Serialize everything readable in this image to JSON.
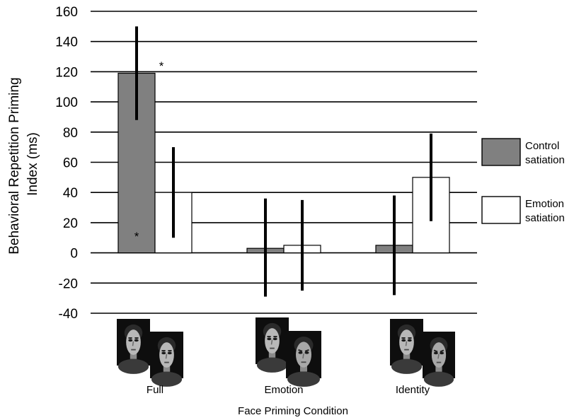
{
  "chart_data": {
    "type": "bar",
    "categories": [
      "Full",
      "Emotion",
      "Identity"
    ],
    "xlabel": "Face Priming Condition",
    "ylabel_lines": [
      "Behavioral Repetition Priming",
      "Index (ms)"
    ],
    "ylim": [
      -40,
      160
    ],
    "yticks": [
      160,
      140,
      120,
      100,
      80,
      60,
      40,
      20,
      0,
      -20,
      -40
    ],
    "grid": true,
    "legend_position": "right",
    "series": [
      {
        "name": "Control satiation",
        "legend_lines": [
          "Control",
          "satiation"
        ],
        "color": "#808080",
        "values": [
          119,
          3,
          5
        ],
        "err_low": [
          88,
          -29,
          -28
        ],
        "err_high": [
          150,
          36,
          38
        ]
      },
      {
        "name": "Emotion satiation",
        "legend_lines": [
          "Emotion",
          "satiation"
        ],
        "color": "#ffffff",
        "values": [
          40,
          5,
          50
        ],
        "err_low": [
          10,
          -25,
          21
        ],
        "err_high": [
          70,
          35,
          79
        ]
      }
    ],
    "annotations": [
      {
        "text": "*",
        "category": 0,
        "series": 0,
        "at": "top",
        "value": 124
      },
      {
        "text": "*",
        "category": 0,
        "series": 0,
        "at": "inside",
        "value": 11
      }
    ],
    "face_images": [
      {
        "category": "Full",
        "description": "two male faces, same identity, same emotion"
      },
      {
        "category": "Emotion",
        "description": "two male faces, different identity, same emotion"
      },
      {
        "category": "Identity",
        "description": "two male faces, same identity, different emotion"
      }
    ]
  }
}
